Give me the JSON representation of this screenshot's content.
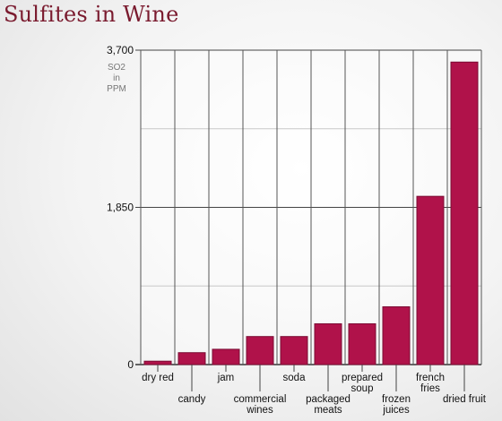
{
  "page_title": "Sulfites in Wine",
  "chart_data": {
    "type": "bar",
    "title": "Sulfites in Wine",
    "ylabel_lines": [
      "SO2",
      "in",
      "PPM"
    ],
    "categories": [
      [
        "dry red"
      ],
      [
        "candy"
      ],
      [
        "jam"
      ],
      [
        "commercial",
        "wines"
      ],
      [
        "soda"
      ],
      [
        "packaged",
        "meats"
      ],
      [
        "prepared",
        "soup"
      ],
      [
        "frozen",
        "juices"
      ],
      [
        "french",
        "fries"
      ],
      [
        "dried fruit"
      ]
    ],
    "values": [
      40,
      140,
      180,
      330,
      330,
      480,
      480,
      680,
      1980,
      3560
    ],
    "ylim": [
      0,
      3700
    ],
    "yticks": [
      {
        "value": 0,
        "label": "0"
      },
      {
        "value": 1850,
        "label": "1,850"
      },
      {
        "value": 3700,
        "label": "3,700"
      }
    ],
    "minor_gridlines": [
      925,
      2775
    ],
    "grid": true,
    "colors": {
      "bar": "#b0124a",
      "bar_edge": "#7a0c33",
      "title": "#7a1a2e",
      "grid": "#555555"
    }
  }
}
